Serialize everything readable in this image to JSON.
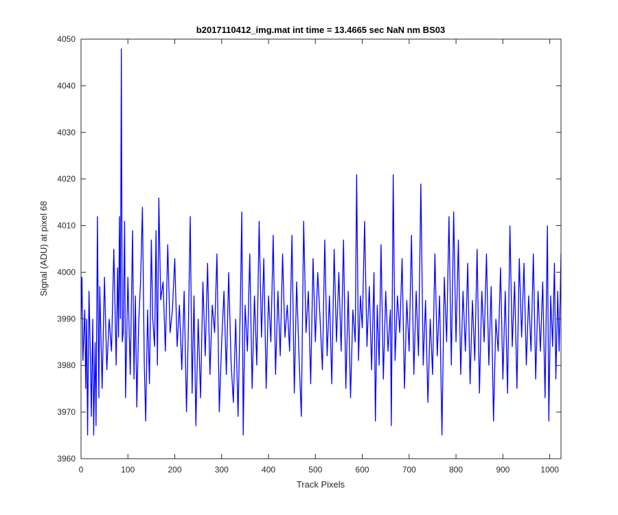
{
  "chart_data": {
    "type": "line",
    "title": "b2017110412_img.mat int time = 13.4665 sec  NaN nm BS03",
    "xlabel": "Track Pixels",
    "ylabel": "Signal (ADU) at pixel 68",
    "xlim": [
      0,
      1024
    ],
    "ylim": [
      3960,
      4050
    ],
    "xticks": [
      0,
      100,
      200,
      300,
      400,
      500,
      600,
      700,
      800,
      900,
      1000
    ],
    "yticks": [
      3960,
      3970,
      3980,
      3990,
      4000,
      4010,
      4020,
      4030,
      4040,
      4050
    ],
    "grid": false,
    "legend": "none",
    "line_color": "#0000ff",
    "anchors": [
      [
        0,
        3990
      ],
      [
        2,
        3999
      ],
      [
        4,
        3981
      ],
      [
        8,
        3992
      ],
      [
        10,
        3975
      ],
      [
        12,
        3990
      ],
      [
        14,
        3965
      ],
      [
        17,
        3996
      ],
      [
        20,
        3982
      ],
      [
        22,
        3969
      ],
      [
        25,
        3990
      ],
      [
        27,
        3965
      ],
      [
        30,
        3985
      ],
      [
        32,
        3967
      ],
      [
        35,
        4012
      ],
      [
        38,
        3973
      ],
      [
        40,
        3997
      ],
      [
        45,
        3975
      ],
      [
        50,
        3999
      ],
      [
        55,
        3979
      ],
      [
        60,
        3990
      ],
      [
        65,
        3983
      ],
      [
        70,
        4005
      ],
      [
        75,
        3980
      ],
      [
        78,
        4001
      ],
      [
        80,
        3986
      ],
      [
        82,
        4012
      ],
      [
        84,
        3990
      ],
      [
        86,
        4048
      ],
      [
        88,
        3985
      ],
      [
        90,
        3987
      ],
      [
        93,
        4011
      ],
      [
        95,
        3973
      ],
      [
        100,
        3999
      ],
      [
        105,
        3978
      ],
      [
        110,
        4009
      ],
      [
        113,
        3977
      ],
      [
        116,
        3995
      ],
      [
        119,
        3971
      ],
      [
        123,
        3989
      ],
      [
        127,
        3998
      ],
      [
        131,
        4014
      ],
      [
        135,
        3980
      ],
      [
        138,
        3968
      ],
      [
        142,
        3992
      ],
      [
        146,
        3976
      ],
      [
        150,
        4007
      ],
      [
        153,
        3990
      ],
      [
        157,
        3984
      ],
      [
        160,
        4009
      ],
      [
        163,
        3980
      ],
      [
        166,
        4016
      ],
      [
        170,
        3994
      ],
      [
        175,
        3998
      ],
      [
        180,
        3983
      ],
      [
        185,
        4006
      ],
      [
        190,
        3987
      ],
      [
        195,
        3992
      ],
      [
        200,
        4003
      ],
      [
        205,
        3984
      ],
      [
        210,
        3993
      ],
      [
        215,
        3979
      ],
      [
        220,
        3996
      ],
      [
        225,
        3970
      ],
      [
        229,
        3988
      ],
      [
        233,
        4012
      ],
      [
        237,
        3974
      ],
      [
        241,
        3995
      ],
      [
        245,
        3967
      ],
      [
        250,
        3990
      ],
      [
        255,
        3973
      ],
      [
        260,
        3998
      ],
      [
        265,
        3982
      ],
      [
        270,
        4002
      ],
      [
        275,
        3978
      ],
      [
        280,
        3993
      ],
      [
        285,
        3987
      ],
      [
        290,
        4004
      ],
      [
        295,
        3970
      ],
      [
        300,
        3985
      ],
      [
        305,
        3996
      ],
      [
        310,
        3978
      ],
      [
        315,
        4000
      ],
      [
        320,
        3981
      ],
      [
        325,
        3972
      ],
      [
        330,
        3990
      ],
      [
        335,
        3969
      ],
      [
        340,
        3994
      ],
      [
        343,
        4013
      ],
      [
        346,
        3965
      ],
      [
        350,
        3993
      ],
      [
        355,
        3983
      ],
      [
        360,
        4004
      ],
      [
        365,
        3975
      ],
      [
        370,
        3995
      ],
      [
        375,
        3980
      ],
      [
        380,
        4011
      ],
      [
        385,
        3986
      ],
      [
        390,
        4003
      ],
      [
        395,
        3975
      ],
      [
        400,
        3995
      ],
      [
        405,
        3985
      ],
      [
        410,
        4008
      ],
      [
        415,
        3978
      ],
      [
        420,
        3996
      ],
      [
        425,
        3982
      ],
      [
        430,
        4004
      ],
      [
        435,
        3986
      ],
      [
        440,
        3993
      ],
      [
        445,
        3983
      ],
      [
        450,
        4008
      ],
      [
        455,
        3974
      ],
      [
        460,
        3998
      ],
      [
        465,
        3982
      ],
      [
        470,
        3969
      ],
      [
        475,
        4011
      ],
      [
        480,
        3987
      ],
      [
        485,
        3996
      ],
      [
        490,
        3976
      ],
      [
        495,
        4003
      ],
      [
        500,
        3985
      ],
      [
        505,
        4000
      ],
      [
        510,
        3990
      ],
      [
        515,
        3979
      ],
      [
        520,
        4007
      ],
      [
        525,
        3982
      ],
      [
        530,
        3995
      ],
      [
        535,
        3976
      ],
      [
        540,
        4005
      ],
      [
        545,
        3985
      ],
      [
        550,
        4000
      ],
      [
        555,
        3983
      ],
      [
        560,
        4007
      ],
      [
        565,
        3975
      ],
      [
        570,
        3996
      ],
      [
        575,
        3973
      ],
      [
        580,
        3992
      ],
      [
        585,
        3985
      ],
      [
        588,
        4021
      ],
      [
        592,
        3981
      ],
      [
        596,
        3995
      ],
      [
        600,
        3988
      ],
      [
        605,
        4011
      ],
      [
        610,
        3984
      ],
      [
        615,
        3997
      ],
      [
        620,
        3979
      ],
      [
        625,
        4000
      ],
      [
        628,
        3968
      ],
      [
        632,
        3993
      ],
      [
        636,
        3980
      ],
      [
        640,
        4006
      ],
      [
        645,
        3977
      ],
      [
        650,
        3996
      ],
      [
        655,
        3983
      ],
      [
        660,
        3992
      ],
      [
        662,
        3967
      ],
      [
        666,
        4021
      ],
      [
        670,
        3981
      ],
      [
        675,
        3995
      ],
      [
        680,
        3987
      ],
      [
        685,
        4003
      ],
      [
        690,
        3975
      ],
      [
        695,
        3994
      ],
      [
        700,
        3983
      ],
      [
        705,
        4008
      ],
      [
        710,
        3978
      ],
      [
        715,
        3996
      ],
      [
        720,
        3982
      ],
      [
        725,
        4019
      ],
      [
        730,
        3980
      ],
      [
        735,
        3994
      ],
      [
        740,
        3972
      ],
      [
        745,
        3990
      ],
      [
        750,
        3978
      ],
      [
        755,
        4004
      ],
      [
        760,
        3982
      ],
      [
        765,
        3995
      ],
      [
        770,
        3965
      ],
      [
        775,
        3999
      ],
      [
        780,
        3985
      ],
      [
        785,
        4012
      ],
      [
        790,
        3980
      ],
      [
        795,
        4013
      ],
      [
        800,
        3985
      ],
      [
        805,
        4007
      ],
      [
        810,
        3978
      ],
      [
        815,
        3996
      ],
      [
        820,
        3983
      ],
      [
        825,
        4002
      ],
      [
        830,
        3976
      ],
      [
        835,
        3994
      ],
      [
        840,
        3981
      ],
      [
        845,
        4005
      ],
      [
        850,
        3974
      ],
      [
        855,
        3996
      ],
      [
        860,
        3985
      ],
      [
        865,
        4004
      ],
      [
        870,
        3980
      ],
      [
        875,
        3997
      ],
      [
        880,
        3968
      ],
      [
        885,
        3990
      ],
      [
        890,
        3983
      ],
      [
        895,
        4001
      ],
      [
        900,
        3977
      ],
      [
        905,
        3996
      ],
      [
        910,
        3974
      ],
      [
        915,
        4010
      ],
      [
        920,
        3984
      ],
      [
        925,
        3998
      ],
      [
        930,
        3975
      ],
      [
        935,
        4003
      ],
      [
        940,
        3986
      ],
      [
        945,
        4002
      ],
      [
        950,
        3980
      ],
      [
        955,
        3995
      ],
      [
        960,
        3983
      ],
      [
        965,
        4004
      ],
      [
        970,
        3977
      ],
      [
        975,
        3996
      ],
      [
        980,
        3983
      ],
      [
        985,
        3998
      ],
      [
        990,
        3973
      ],
      [
        995,
        4010
      ],
      [
        998,
        3968
      ],
      [
        1002,
        3995
      ],
      [
        1006,
        3984
      ],
      [
        1010,
        4002
      ],
      [
        1013,
        3977
      ],
      [
        1017,
        3996
      ],
      [
        1020,
        3983
      ],
      [
        1024,
        4004
      ]
    ]
  }
}
